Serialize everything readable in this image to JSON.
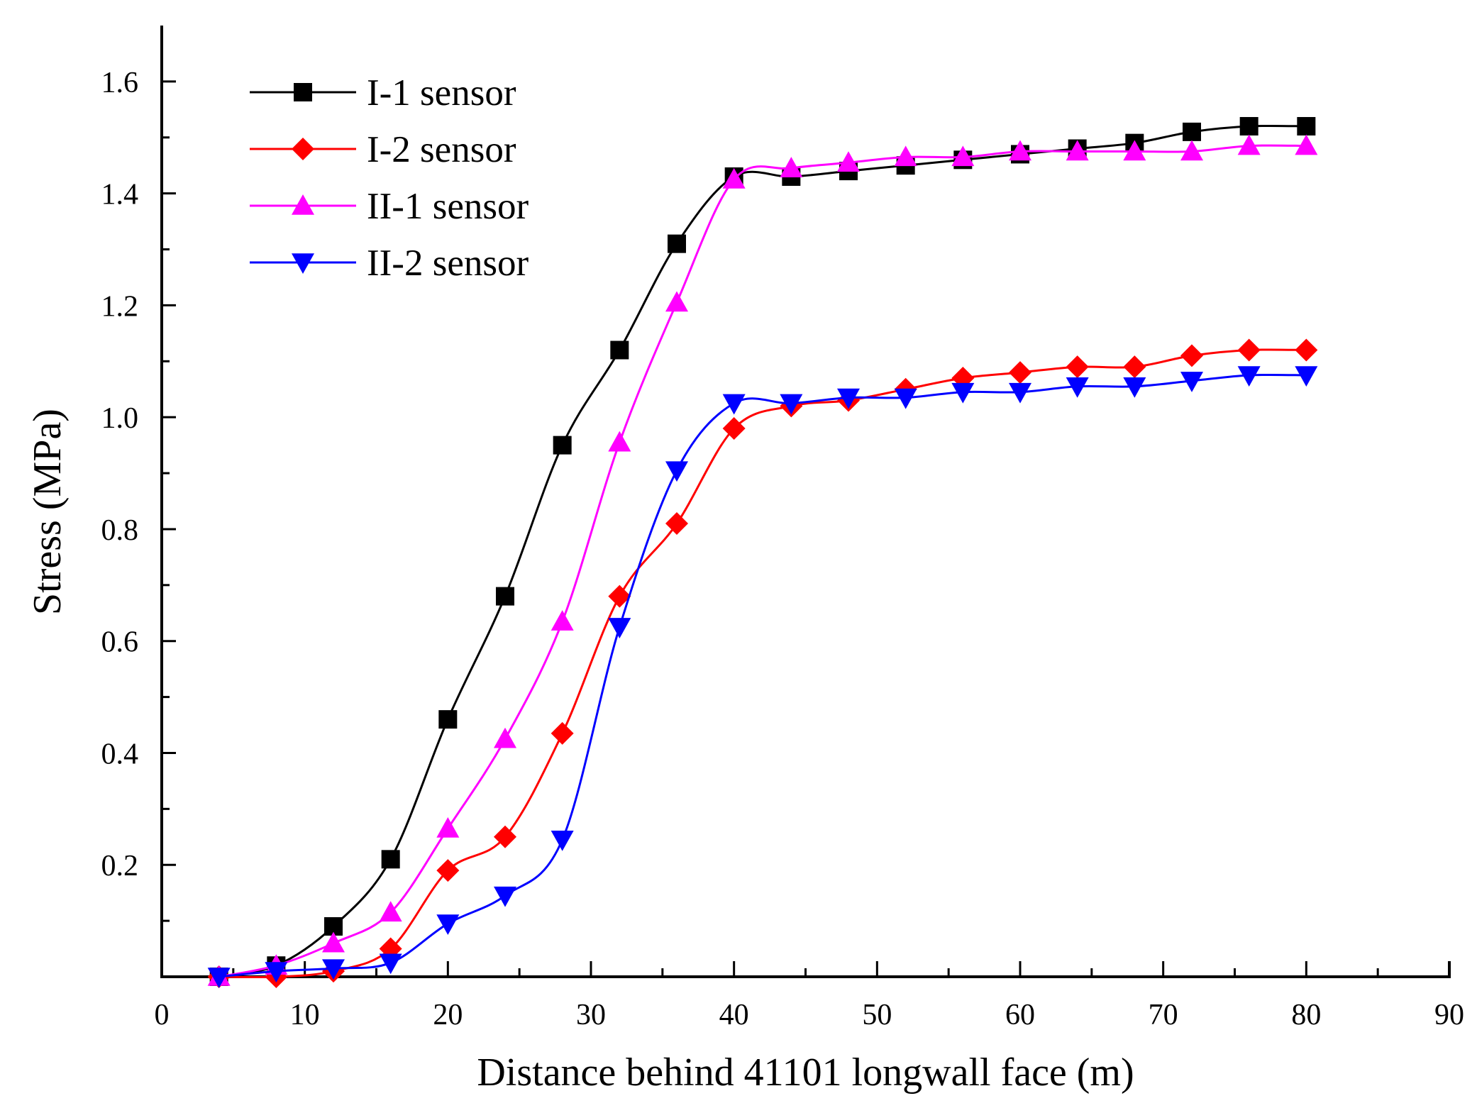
{
  "chart_data": {
    "type": "line",
    "title": "",
    "xlabel": "Distance behind 41101 longwall face (m)",
    "ylabel": "Stress (MPa)",
    "xlim": [
      0,
      90
    ],
    "ylim": [
      0,
      1.7
    ],
    "x_ticks": [
      "0",
      "10",
      "20",
      "30",
      "40",
      "50",
      "60",
      "70",
      "80",
      "90"
    ],
    "y_ticks": [
      "0.2",
      "0.4",
      "0.6",
      "0.8",
      "1.0",
      "1.2",
      "1.4",
      "1.6"
    ],
    "grid": false,
    "legend_position": "top-left",
    "x": [
      4,
      8,
      12,
      16,
      20,
      24,
      28,
      32,
      36,
      40,
      44,
      48,
      52,
      56,
      60,
      64,
      68,
      72,
      76,
      80
    ],
    "series": [
      {
        "name": "I-1 sensor",
        "color": "#000000",
        "marker": "square",
        "values": [
          0.0,
          0.02,
          0.09,
          0.21,
          0.46,
          0.68,
          0.95,
          1.12,
          1.31,
          1.43,
          1.43,
          1.44,
          1.45,
          1.46,
          1.47,
          1.48,
          1.49,
          1.51,
          1.52,
          1.52
        ]
      },
      {
        "name": "I-2 sensor",
        "color": "#ff0000",
        "marker": "diamond",
        "values": [
          0.0,
          0.0,
          0.01,
          0.05,
          0.19,
          0.25,
          0.435,
          0.68,
          0.81,
          0.98,
          1.02,
          1.03,
          1.05,
          1.07,
          1.08,
          1.09,
          1.09,
          1.11,
          1.12,
          1.12
        ]
      },
      {
        "name": "II-1 sensor",
        "color": "#ff00ff",
        "marker": "triangle-up",
        "values": [
          0.0,
          0.02,
          0.06,
          0.115,
          0.265,
          0.425,
          0.635,
          0.955,
          1.205,
          1.425,
          1.445,
          1.455,
          1.465,
          1.465,
          1.475,
          1.475,
          1.475,
          1.475,
          1.485,
          1.485
        ]
      },
      {
        "name": "II-2 sensor",
        "color": "#0000ff",
        "marker": "triangle-down",
        "values": [
          0.0,
          0.01,
          0.015,
          0.025,
          0.095,
          0.145,
          0.245,
          0.625,
          0.905,
          1.025,
          1.025,
          1.035,
          1.035,
          1.045,
          1.045,
          1.055,
          1.055,
          1.065,
          1.075,
          1.075
        ]
      }
    ]
  }
}
